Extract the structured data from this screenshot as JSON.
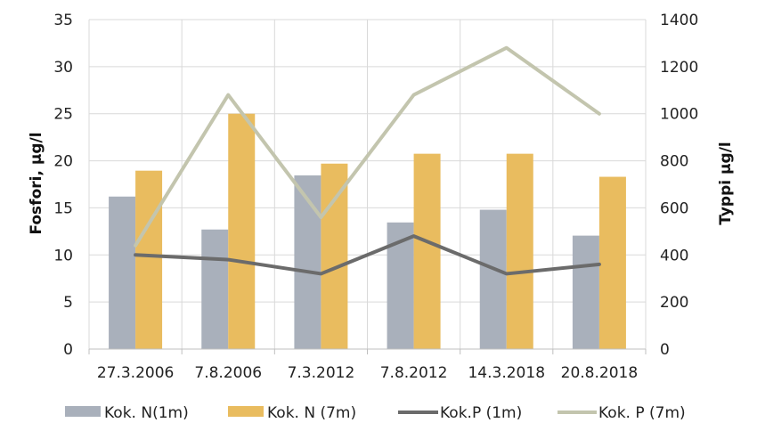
{
  "chart_data": {
    "type": "bar",
    "categories": [
      "27.3.2006",
      "7.8.2006",
      "7.3.2012",
      "7.8.2012",
      "14.3.2018",
      "20.8.2018"
    ],
    "series": [
      {
        "name": "Kok. N(1m)",
        "type": "bar",
        "axis": "right",
        "color": "#a9b0bb",
        "values": [
          648,
          508,
          738,
          538,
          592,
          482
        ]
      },
      {
        "name": "Kok. N (7m)",
        "type": "bar",
        "axis": "right",
        "color": "#e9bc5f",
        "values": [
          758,
          1000,
          788,
          830,
          830,
          732
        ]
      },
      {
        "name": "Kok.P (1m)",
        "type": "line",
        "axis": "left",
        "color": "#6b6b6b",
        "values": [
          10,
          9.5,
          8,
          12,
          8,
          9
        ]
      },
      {
        "name": "Kok. P (7m)",
        "type": "line",
        "axis": "left",
        "color": "#c3c5ae",
        "values": [
          11,
          27,
          14,
          27,
          32,
          25
        ]
      }
    ],
    "ylabel": "Fosfori, µg/l",
    "y2label": "Typpi µg/l",
    "ylim": [
      0,
      35
    ],
    "y2lim": [
      0,
      1400
    ],
    "yticks": [
      "0",
      "5",
      "10",
      "15",
      "20",
      "25",
      "30",
      "35"
    ],
    "y2ticks": [
      "0",
      "200",
      "400",
      "600",
      "800",
      "1000",
      "1200",
      "1400"
    ],
    "grid": true,
    "legend_position": "bottom"
  }
}
